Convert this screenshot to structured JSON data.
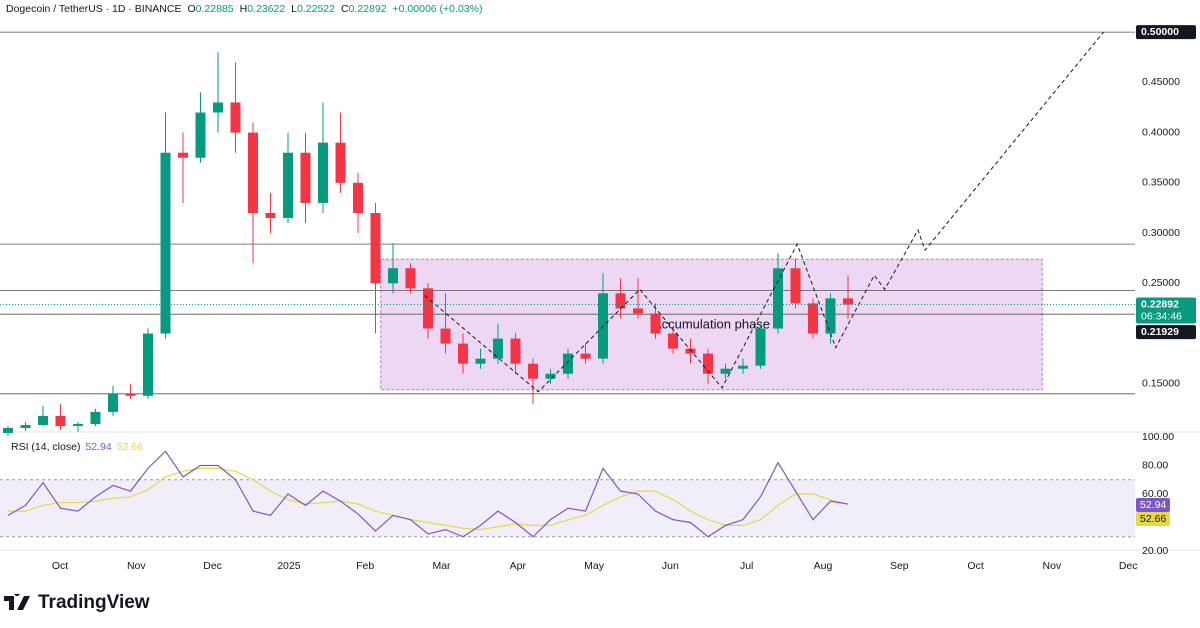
{
  "header": {
    "symbol": "Dogecoin / TetherUS · 1D · BINANCE",
    "ohlc": [
      {
        "label": "O",
        "value": 0.22885
      },
      {
        "label": "H",
        "value": 0.23622
      },
      {
        "label": "L",
        "value": 0.22522
      },
      {
        "label": "C",
        "value": 0.22892
      }
    ],
    "change": "+0.00006 (+0.03%)"
  },
  "chart_data": [
    {
      "type": "candlestick",
      "categories": [
        "Oct",
        "Nov",
        "Dec",
        "2025",
        "Feb",
        "Mar",
        "Apr",
        "May",
        "Jun",
        "Jul",
        "Aug",
        "Sep",
        "Oct",
        "Nov",
        "Dec"
      ],
      "open": [
        0.101,
        0.106,
        0.109,
        0.118,
        0.108,
        0.11,
        0.122,
        0.14,
        0.138,
        0.2,
        0.38,
        0.375,
        0.42,
        0.43,
        0.4,
        0.32,
        0.315,
        0.38,
        0.33,
        0.39,
        0.35,
        0.32,
        0.25,
        0.265,
        0.245,
        0.205,
        0.19,
        0.17,
        0.175,
        0.195,
        0.17,
        0.155,
        0.16,
        0.18,
        0.175,
        0.24,
        0.225,
        0.22,
        0.2,
        0.185,
        0.18,
        0.16,
        0.165,
        0.168,
        0.205,
        0.265,
        0.23,
        0.2,
        0.235
      ],
      "high": [
        0.108,
        0.112,
        0.128,
        0.13,
        0.112,
        0.125,
        0.148,
        0.15,
        0.205,
        0.42,
        0.4,
        0.44,
        0.48,
        0.47,
        0.41,
        0.34,
        0.4,
        0.4,
        0.43,
        0.42,
        0.36,
        0.33,
        0.29,
        0.27,
        0.25,
        0.24,
        0.2,
        0.185,
        0.21,
        0.2,
        0.175,
        0.165,
        0.185,
        0.19,
        0.26,
        0.255,
        0.255,
        0.23,
        0.205,
        0.195,
        0.185,
        0.17,
        0.175,
        0.21,
        0.28,
        0.275,
        0.235,
        0.24,
        0.258
      ],
      "low": [
        0.098,
        0.103,
        0.108,
        0.104,
        0.102,
        0.108,
        0.118,
        0.135,
        0.135,
        0.195,
        0.33,
        0.37,
        0.4,
        0.38,
        0.27,
        0.3,
        0.31,
        0.31,
        0.32,
        0.34,
        0.3,
        0.2,
        0.24,
        0.24,
        0.195,
        0.18,
        0.16,
        0.165,
        0.17,
        0.16,
        0.13,
        0.15,
        0.155,
        0.17,
        0.17,
        0.215,
        0.215,
        0.195,
        0.18,
        0.17,
        0.15,
        0.155,
        0.16,
        0.165,
        0.2,
        0.225,
        0.195,
        0.19,
        0.215
      ],
      "close": [
        0.106,
        0.109,
        0.118,
        0.108,
        0.11,
        0.122,
        0.14,
        0.138,
        0.2,
        0.38,
        0.375,
        0.42,
        0.43,
        0.4,
        0.32,
        0.315,
        0.38,
        0.33,
        0.39,
        0.35,
        0.32,
        0.25,
        0.265,
        0.245,
        0.205,
        0.19,
        0.17,
        0.175,
        0.195,
        0.17,
        0.155,
        0.16,
        0.18,
        0.175,
        0.24,
        0.225,
        0.22,
        0.2,
        0.185,
        0.18,
        0.16,
        0.165,
        0.168,
        0.205,
        0.265,
        0.23,
        0.2,
        0.235,
        0.22892
      ],
      "up_color": "#089981",
      "down_color": "#f23645",
      "ylim": [
        0.102,
        0.532
      ],
      "yticks": [
        {
          "value": 0.45,
          "label": "0.45000"
        },
        {
          "value": 0.4,
          "label": "0.40000"
        },
        {
          "value": 0.35,
          "label": "0.35000"
        },
        {
          "value": 0.3,
          "label": "0.30000"
        },
        {
          "value": 0.25,
          "label": "0.25000"
        },
        {
          "value": 0.15,
          "label": "0.15000"
        }
      ],
      "levels": [
        {
          "value": 0.5,
          "label": "0.50000"
        },
        0.289,
        0.243,
        0.21929,
        0.14
      ],
      "countdown": "06:34:46",
      "box": {
        "label": "Accumulation phase",
        "top": 0.274,
        "bottom": 0.144,
        "start": 21.3,
        "end": 59.1,
        "color": "#d59be6"
      },
      "projection": {
        "x": [
          23.8,
          30.3,
          36.1,
          40.8,
          45.1,
          47.3,
          49.5,
          50.1,
          52,
          52.4,
          62.6
        ],
        "y": [
          0.238,
          0.142,
          0.244,
          0.146,
          0.289,
          0.186,
          0.258,
          0.244,
          0.303,
          0.283,
          0.5
        ]
      }
    },
    {
      "type": "line",
      "title": "RSI (14, close)",
      "series": [
        {
          "color": "#7e57c2",
          "values": [
            45,
            52,
            68,
            50,
            48,
            58,
            66,
            62,
            78,
            90,
            72,
            80,
            80,
            70,
            48,
            45,
            60,
            52,
            62,
            55,
            46,
            34,
            45,
            42,
            32,
            35,
            30,
            38,
            48,
            40,
            30,
            42,
            50,
            48,
            78,
            62,
            60,
            48,
            42,
            40,
            30,
            38,
            42,
            58,
            82,
            62,
            42,
            55,
            52.94
          ]
        },
        {
          "color": "#e6d84a",
          "values": [
            48,
            48,
            52,
            54,
            54,
            55,
            57,
            58,
            63,
            72,
            76,
            78,
            78,
            76,
            70,
            62,
            56,
            53,
            54,
            55,
            53,
            48,
            45,
            42,
            40,
            38,
            36,
            35,
            37,
            39,
            38,
            38,
            42,
            45,
            52,
            58,
            62,
            62,
            56,
            48,
            42,
            38,
            38,
            42,
            52,
            60,
            60,
            56,
            52.66
          ]
        }
      ],
      "ylim": [
        20,
        100
      ],
      "yticks": [
        {
          "value": 100,
          "label": "100.00"
        },
        {
          "value": 80,
          "label": "80.00"
        },
        {
          "value": 60,
          "label": "60.00"
        },
        {
          "value": 20,
          "label": "20.00"
        }
      ],
      "band": [
        30,
        70
      ]
    }
  ],
  "footer": {
    "brand": "TradingView"
  }
}
